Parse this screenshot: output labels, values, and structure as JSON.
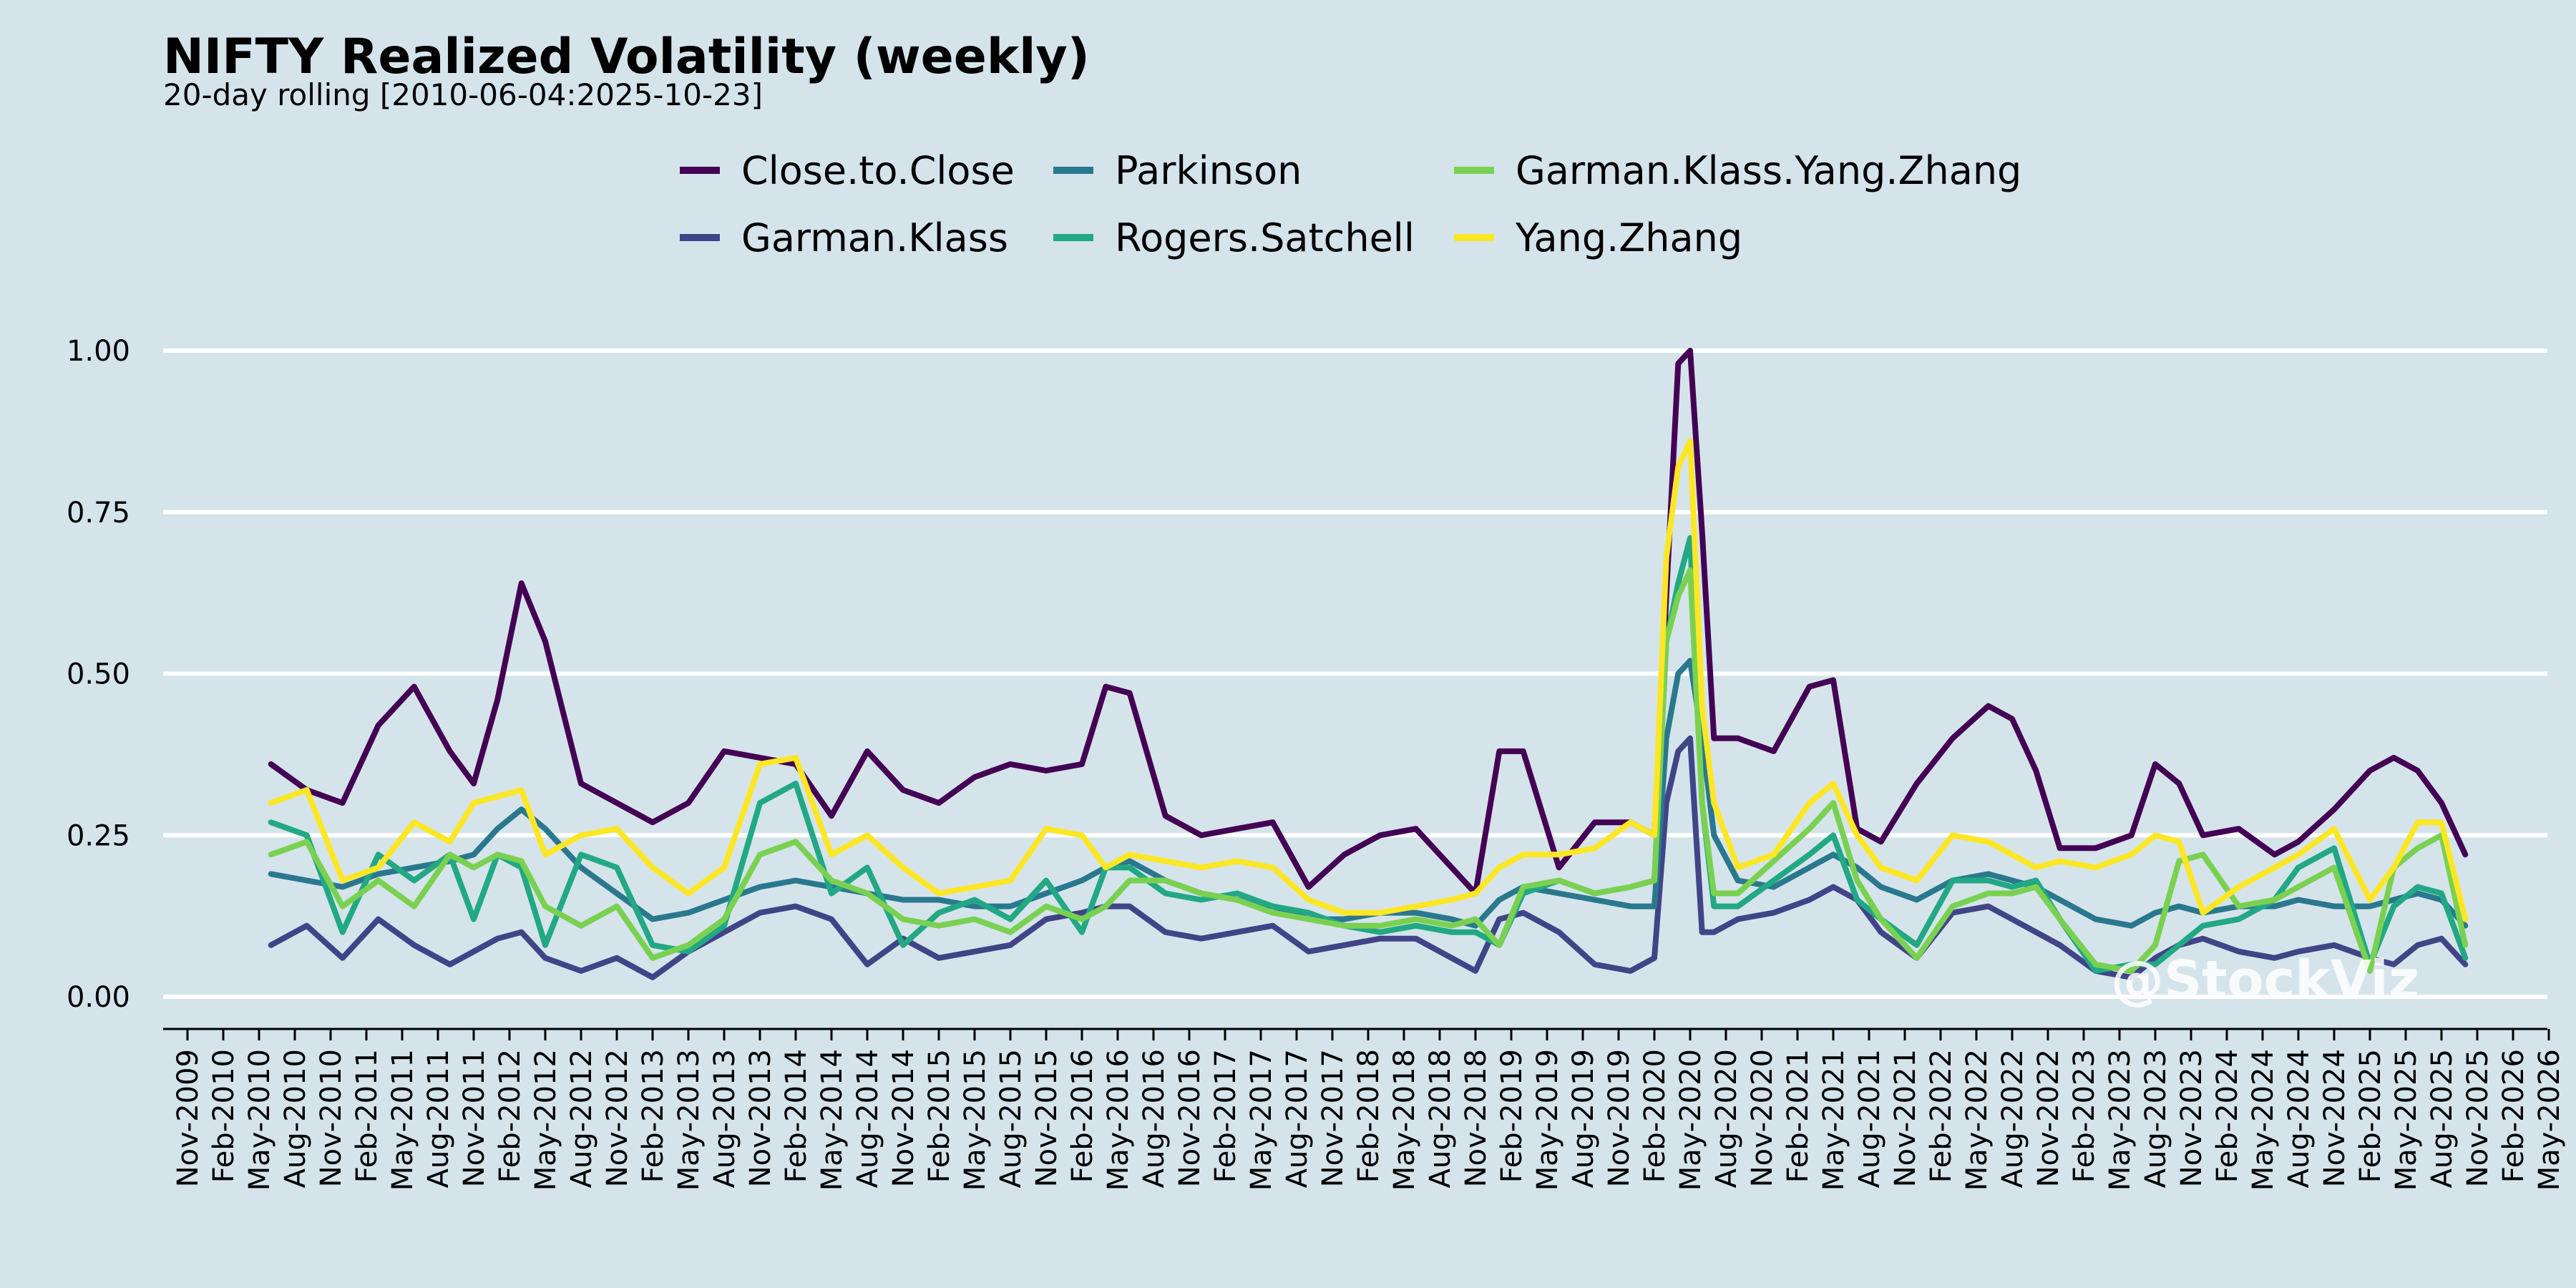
{
  "chart_data": {
    "type": "line",
    "title": "NIFTY Realized Volatility (weekly)",
    "subtitle": "20-day rolling [2010-06-04:2025-10-23]",
    "xlabel": "",
    "ylabel": "",
    "ylim": [
      0,
      1.0
    ],
    "y_ticks": [
      "0.00",
      "0.25",
      "0.50",
      "0.75",
      "1.00"
    ],
    "x_ticks": [
      "Nov-2009",
      "Feb-2010",
      "May-2010",
      "Aug-2010",
      "Nov-2010",
      "Feb-2011",
      "May-2011",
      "Aug-2011",
      "Nov-2011",
      "Feb-2012",
      "May-2012",
      "Aug-2012",
      "Nov-2012",
      "Feb-2013",
      "May-2013",
      "Aug-2013",
      "Nov-2013",
      "Feb-2014",
      "May-2014",
      "Aug-2014",
      "Nov-2014",
      "Feb-2015",
      "May-2015",
      "Aug-2015",
      "Nov-2015",
      "Feb-2016",
      "May-2016",
      "Aug-2016",
      "Nov-2016",
      "Feb-2017",
      "May-2017",
      "Aug-2017",
      "Nov-2017",
      "Feb-2018",
      "May-2018",
      "Aug-2018",
      "Nov-2018",
      "Feb-2019",
      "May-2019",
      "Aug-2019",
      "Nov-2019",
      "Feb-2020",
      "May-2020",
      "Aug-2020",
      "Nov-2020",
      "Feb-2021",
      "May-2021",
      "Aug-2021",
      "Nov-2021",
      "Feb-2022",
      "May-2022",
      "Aug-2022",
      "Nov-2022",
      "Feb-2023",
      "May-2023",
      "Aug-2023",
      "Nov-2023",
      "Feb-2024",
      "May-2024",
      "Aug-2024",
      "Nov-2024",
      "Feb-2025",
      "May-2025",
      "Aug-2025",
      "Nov-2025",
      "Feb-2026",
      "May-2026"
    ],
    "grid": "horizontal",
    "legend_position": "top-center",
    "watermark": "@StockViz",
    "colors": {
      "background": "#d5e4eb",
      "grid": "#ffffff"
    },
    "series": [
      {
        "name": "Close.to.Close",
        "color": "#440154",
        "x": [
          "2010-06",
          "2010-09",
          "2010-12",
          "2011-03",
          "2011-06",
          "2011-09",
          "2011-11",
          "2012-01",
          "2012-03",
          "2012-05",
          "2012-08",
          "2012-11",
          "2013-02",
          "2013-05",
          "2013-08",
          "2013-11",
          "2014-02",
          "2014-05",
          "2014-08",
          "2014-11",
          "2015-02",
          "2015-05",
          "2015-08",
          "2015-11",
          "2016-02",
          "2016-04",
          "2016-06",
          "2016-09",
          "2016-12",
          "2017-03",
          "2017-06",
          "2017-09",
          "2017-12",
          "2018-03",
          "2018-06",
          "2018-09",
          "2018-11",
          "2019-01",
          "2019-03",
          "2019-06",
          "2019-09",
          "2019-12",
          "2020-02",
          "2020-03",
          "2020-04",
          "2020-05",
          "2020-06",
          "2020-07",
          "2020-09",
          "2020-12",
          "2021-03",
          "2021-05",
          "2021-07",
          "2021-09",
          "2021-12",
          "2022-03",
          "2022-06",
          "2022-08",
          "2022-10",
          "2022-12",
          "2023-03",
          "2023-06",
          "2023-08",
          "2023-10",
          "2023-12",
          "2024-03",
          "2024-06",
          "2024-08",
          "2024-11",
          "2025-02",
          "2025-04",
          "2025-06",
          "2025-08",
          "2025-10"
        ],
        "values": [
          0.36,
          0.32,
          0.3,
          0.42,
          0.48,
          0.38,
          0.33,
          0.46,
          0.64,
          0.55,
          0.33,
          0.3,
          0.27,
          0.3,
          0.38,
          0.37,
          0.36,
          0.28,
          0.38,
          0.32,
          0.3,
          0.34,
          0.36,
          0.35,
          0.36,
          0.48,
          0.47,
          0.28,
          0.25,
          0.26,
          0.27,
          0.17,
          0.22,
          0.25,
          0.26,
          0.2,
          0.16,
          0.38,
          0.38,
          0.2,
          0.27,
          0.27,
          0.25,
          0.62,
          0.98,
          1.0,
          0.72,
          0.4,
          0.4,
          0.38,
          0.48,
          0.49,
          0.26,
          0.24,
          0.33,
          0.4,
          0.45,
          0.43,
          0.35,
          0.23,
          0.23,
          0.25,
          0.36,
          0.33,
          0.25,
          0.26,
          0.22,
          0.24,
          0.29,
          0.35,
          0.37,
          0.35,
          0.3,
          0.22
        ]
      },
      {
        "name": "Garman.Klass",
        "color": "#414487",
        "x": [
          "2010-06",
          "2010-09",
          "2010-12",
          "2011-03",
          "2011-06",
          "2011-09",
          "2011-11",
          "2012-01",
          "2012-03",
          "2012-05",
          "2012-08",
          "2012-11",
          "2013-02",
          "2013-05",
          "2013-08",
          "2013-11",
          "2014-02",
          "2014-05",
          "2014-08",
          "2014-11",
          "2015-02",
          "2015-05",
          "2015-08",
          "2015-11",
          "2016-02",
          "2016-04",
          "2016-06",
          "2016-09",
          "2016-12",
          "2017-03",
          "2017-06",
          "2017-09",
          "2017-12",
          "2018-03",
          "2018-06",
          "2018-09",
          "2018-11",
          "2019-01",
          "2019-03",
          "2019-06",
          "2019-09",
          "2019-12",
          "2020-02",
          "2020-03",
          "2020-04",
          "2020-05",
          "2020-06",
          "2020-07",
          "2020-09",
          "2020-12",
          "2021-03",
          "2021-05",
          "2021-07",
          "2021-09",
          "2021-12",
          "2022-03",
          "2022-06",
          "2022-08",
          "2022-10",
          "2022-12",
          "2023-03",
          "2023-06",
          "2023-08",
          "2023-10",
          "2023-12",
          "2024-03",
          "2024-06",
          "2024-08",
          "2024-11",
          "2025-02",
          "2025-04",
          "2025-06",
          "2025-08",
          "2025-10"
        ],
        "values": [
          0.08,
          0.11,
          0.06,
          0.12,
          0.08,
          0.05,
          0.07,
          0.09,
          0.1,
          0.06,
          0.04,
          0.06,
          0.03,
          0.07,
          0.1,
          0.13,
          0.14,
          0.12,
          0.05,
          0.09,
          0.06,
          0.07,
          0.08,
          0.12,
          0.13,
          0.14,
          0.14,
          0.1,
          0.09,
          0.1,
          0.11,
          0.07,
          0.08,
          0.09,
          0.09,
          0.06,
          0.04,
          0.12,
          0.13,
          0.1,
          0.05,
          0.04,
          0.06,
          0.3,
          0.38,
          0.4,
          0.1,
          0.1,
          0.12,
          0.13,
          0.15,
          0.17,
          0.15,
          0.1,
          0.06,
          0.13,
          0.14,
          0.12,
          0.1,
          0.08,
          0.04,
          0.03,
          0.06,
          0.08,
          0.09,
          0.07,
          0.06,
          0.07,
          0.08,
          0.06,
          0.05,
          0.08,
          0.09,
          0.05
        ]
      },
      {
        "name": "Parkinson",
        "color": "#2a788e",
        "x": [
          "2010-06",
          "2010-09",
          "2010-12",
          "2011-03",
          "2011-06",
          "2011-09",
          "2011-11",
          "2012-01",
          "2012-03",
          "2012-05",
          "2012-08",
          "2012-11",
          "2013-02",
          "2013-05",
          "2013-08",
          "2013-11",
          "2014-02",
          "2014-05",
          "2014-08",
          "2014-11",
          "2015-02",
          "2015-05",
          "2015-08",
          "2015-11",
          "2016-02",
          "2016-04",
          "2016-06",
          "2016-09",
          "2016-12",
          "2017-03",
          "2017-06",
          "2017-09",
          "2017-12",
          "2018-03",
          "2018-06",
          "2018-09",
          "2018-11",
          "2019-01",
          "2019-03",
          "2019-06",
          "2019-09",
          "2019-12",
          "2020-02",
          "2020-03",
          "2020-04",
          "2020-05",
          "2020-06",
          "2020-07",
          "2020-09",
          "2020-12",
          "2021-03",
          "2021-05",
          "2021-07",
          "2021-09",
          "2021-12",
          "2022-03",
          "2022-06",
          "2022-08",
          "2022-10",
          "2022-12",
          "2023-03",
          "2023-06",
          "2023-08",
          "2023-10",
          "2023-12",
          "2024-03",
          "2024-06",
          "2024-08",
          "2024-11",
          "2025-02",
          "2025-04",
          "2025-06",
          "2025-08",
          "2025-10"
        ],
        "values": [
          0.19,
          0.18,
          0.17,
          0.19,
          0.2,
          0.21,
          0.22,
          0.26,
          0.29,
          0.26,
          0.2,
          0.16,
          0.12,
          0.13,
          0.15,
          0.17,
          0.18,
          0.17,
          0.16,
          0.15,
          0.15,
          0.14,
          0.14,
          0.16,
          0.18,
          0.2,
          0.21,
          0.18,
          0.16,
          0.15,
          0.14,
          0.12,
          0.12,
          0.13,
          0.13,
          0.12,
          0.11,
          0.15,
          0.17,
          0.16,
          0.15,
          0.14,
          0.14,
          0.4,
          0.5,
          0.52,
          0.4,
          0.25,
          0.18,
          0.17,
          0.2,
          0.22,
          0.2,
          0.17,
          0.15,
          0.18,
          0.19,
          0.18,
          0.17,
          0.15,
          0.12,
          0.11,
          0.13,
          0.14,
          0.13,
          0.14,
          0.14,
          0.15,
          0.14,
          0.14,
          0.15,
          0.16,
          0.15,
          0.11
        ]
      },
      {
        "name": "Rogers.Satchell",
        "color": "#22a884",
        "x": [
          "2010-06",
          "2010-09",
          "2010-12",
          "2011-03",
          "2011-06",
          "2011-09",
          "2011-11",
          "2012-01",
          "2012-03",
          "2012-05",
          "2012-08",
          "2012-11",
          "2013-02",
          "2013-05",
          "2013-08",
          "2013-11",
          "2014-02",
          "2014-05",
          "2014-08",
          "2014-11",
          "2015-02",
          "2015-05",
          "2015-08",
          "2015-11",
          "2016-02",
          "2016-04",
          "2016-06",
          "2016-09",
          "2016-12",
          "2017-03",
          "2017-06",
          "2017-09",
          "2017-12",
          "2018-03",
          "2018-06",
          "2018-09",
          "2018-11",
          "2019-01",
          "2019-03",
          "2019-06",
          "2019-09",
          "2019-12",
          "2020-02",
          "2020-03",
          "2020-04",
          "2020-05",
          "2020-06",
          "2020-07",
          "2020-09",
          "2020-12",
          "2021-03",
          "2021-05",
          "2021-07",
          "2021-09",
          "2021-12",
          "2022-03",
          "2022-06",
          "2022-08",
          "2022-10",
          "2022-12",
          "2023-03",
          "2023-06",
          "2023-08",
          "2023-10",
          "2023-12",
          "2024-03",
          "2024-06",
          "2024-08",
          "2024-11",
          "2025-02",
          "2025-04",
          "2025-06",
          "2025-08",
          "2025-10"
        ],
        "values": [
          0.27,
          0.25,
          0.1,
          0.22,
          0.18,
          0.22,
          0.12,
          0.22,
          0.2,
          0.08,
          0.22,
          0.2,
          0.08,
          0.07,
          0.11,
          0.3,
          0.33,
          0.16,
          0.2,
          0.08,
          0.13,
          0.15,
          0.12,
          0.18,
          0.1,
          0.2,
          0.2,
          0.16,
          0.15,
          0.16,
          0.14,
          0.13,
          0.11,
          0.1,
          0.11,
          0.1,
          0.1,
          0.08,
          0.16,
          0.18,
          0.16,
          0.17,
          0.18,
          0.55,
          0.64,
          0.71,
          0.3,
          0.14,
          0.14,
          0.18,
          0.22,
          0.25,
          0.15,
          0.12,
          0.08,
          0.18,
          0.18,
          0.17,
          0.18,
          0.12,
          0.04,
          0.05,
          0.05,
          0.08,
          0.11,
          0.12,
          0.15,
          0.2,
          0.23,
          0.05,
          0.14,
          0.17,
          0.16,
          0.06
        ]
      },
      {
        "name": "Garman.Klass.Yang.Zhang",
        "color": "#7ad151",
        "x": [
          "2010-06",
          "2010-09",
          "2010-12",
          "2011-03",
          "2011-06",
          "2011-09",
          "2011-11",
          "2012-01",
          "2012-03",
          "2012-05",
          "2012-08",
          "2012-11",
          "2013-02",
          "2013-05",
          "2013-08",
          "2013-11",
          "2014-02",
          "2014-05",
          "2014-08",
          "2014-11",
          "2015-02",
          "2015-05",
          "2015-08",
          "2015-11",
          "2016-02",
          "2016-04",
          "2016-06",
          "2016-09",
          "2016-12",
          "2017-03",
          "2017-06",
          "2017-09",
          "2017-12",
          "2018-03",
          "2018-06",
          "2018-09",
          "2018-11",
          "2019-01",
          "2019-03",
          "2019-06",
          "2019-09",
          "2019-12",
          "2020-02",
          "2020-03",
          "2020-04",
          "2020-05",
          "2020-06",
          "2020-07",
          "2020-09",
          "2020-12",
          "2021-03",
          "2021-05",
          "2021-07",
          "2021-09",
          "2021-12",
          "2022-03",
          "2022-06",
          "2022-08",
          "2022-10",
          "2022-12",
          "2023-03",
          "2023-06",
          "2023-08",
          "2023-10",
          "2023-12",
          "2024-03",
          "2024-06",
          "2024-08",
          "2024-11",
          "2025-02",
          "2025-04",
          "2025-06",
          "2025-08",
          "2025-10"
        ],
        "values": [
          0.22,
          0.24,
          0.14,
          0.18,
          0.14,
          0.22,
          0.2,
          0.22,
          0.21,
          0.14,
          0.11,
          0.14,
          0.06,
          0.08,
          0.12,
          0.22,
          0.24,
          0.18,
          0.16,
          0.12,
          0.11,
          0.12,
          0.1,
          0.14,
          0.12,
          0.14,
          0.18,
          0.18,
          0.16,
          0.15,
          0.13,
          0.12,
          0.11,
          0.11,
          0.12,
          0.11,
          0.12,
          0.08,
          0.17,
          0.18,
          0.16,
          0.17,
          0.18,
          0.55,
          0.62,
          0.66,
          0.3,
          0.16,
          0.16,
          0.21,
          0.26,
          0.3,
          0.18,
          0.12,
          0.06,
          0.14,
          0.16,
          0.16,
          0.17,
          0.12,
          0.05,
          0.04,
          0.08,
          0.21,
          0.22,
          0.14,
          0.15,
          0.17,
          0.2,
          0.04,
          0.2,
          0.23,
          0.25,
          0.08
        ]
      },
      {
        "name": "Yang.Zhang",
        "color": "#fde725",
        "x": [
          "2010-06",
          "2010-09",
          "2010-12",
          "2011-03",
          "2011-06",
          "2011-09",
          "2011-11",
          "2012-01",
          "2012-03",
          "2012-05",
          "2012-08",
          "2012-11",
          "2013-02",
          "2013-05",
          "2013-08",
          "2013-11",
          "2014-02",
          "2014-05",
          "2014-08",
          "2014-11",
          "2015-02",
          "2015-05",
          "2015-08",
          "2015-11",
          "2016-02",
          "2016-04",
          "2016-06",
          "2016-09",
          "2016-12",
          "2017-03",
          "2017-06",
          "2017-09",
          "2017-12",
          "2018-03",
          "2018-06",
          "2018-09",
          "2018-11",
          "2019-01",
          "2019-03",
          "2019-06",
          "2019-09",
          "2019-12",
          "2020-02",
          "2020-03",
          "2020-04",
          "2020-05",
          "2020-06",
          "2020-07",
          "2020-09",
          "2020-12",
          "2021-03",
          "2021-05",
          "2021-07",
          "2021-09",
          "2021-12",
          "2022-03",
          "2022-06",
          "2022-08",
          "2022-10",
          "2022-12",
          "2023-03",
          "2023-06",
          "2023-08",
          "2023-10",
          "2023-12",
          "2024-03",
          "2024-06",
          "2024-08",
          "2024-11",
          "2025-02",
          "2025-04",
          "2025-06",
          "2025-08",
          "2025-10"
        ],
        "values": [
          0.3,
          0.32,
          0.18,
          0.2,
          0.27,
          0.24,
          0.3,
          0.31,
          0.32,
          0.22,
          0.25,
          0.26,
          0.2,
          0.16,
          0.2,
          0.36,
          0.37,
          0.22,
          0.25,
          0.2,
          0.16,
          0.17,
          0.18,
          0.26,
          0.25,
          0.2,
          0.22,
          0.21,
          0.2,
          0.21,
          0.2,
          0.15,
          0.13,
          0.13,
          0.14,
          0.15,
          0.16,
          0.2,
          0.22,
          0.22,
          0.23,
          0.27,
          0.25,
          0.68,
          0.82,
          0.86,
          0.45,
          0.3,
          0.2,
          0.22,
          0.3,
          0.33,
          0.25,
          0.2,
          0.18,
          0.25,
          0.24,
          0.22,
          0.2,
          0.21,
          0.2,
          0.22,
          0.25,
          0.24,
          0.13,
          0.17,
          0.2,
          0.22,
          0.26,
          0.15,
          0.2,
          0.27,
          0.27,
          0.12
        ]
      }
    ]
  }
}
